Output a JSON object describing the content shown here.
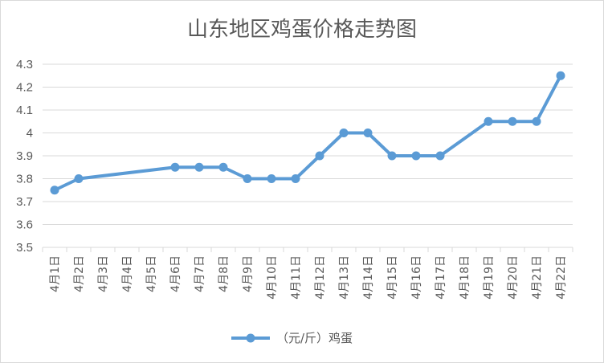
{
  "chart_data": {
    "type": "line",
    "title": "山东地区鸡蛋价格走势图",
    "xlabel": "",
    "ylabel": "",
    "ylim": [
      3.5,
      4.3
    ],
    "yticks": [
      "3.5",
      "3.6",
      "3.7",
      "3.8",
      "3.9",
      "4",
      "4.1",
      "4.2",
      "4.3"
    ],
    "grid": true,
    "legend_position": "bottom",
    "categories": [
      "4月1日",
      "4月2日",
      "4月3日",
      "4月4日",
      "4月5日",
      "4月6日",
      "4月7日",
      "4月8日",
      "4月9日",
      "4月10日",
      "4月11日",
      "4月12日",
      "4月13日",
      "4月14日",
      "4月15日",
      "4月16日",
      "4月17日",
      "4月18日",
      "4月19日",
      "4月20日",
      "4月21日",
      "4月22日"
    ],
    "series": [
      {
        "name": "（元/斤）鸡蛋",
        "color": "#5b9bd5",
        "values": [
          3.75,
          3.8,
          null,
          null,
          null,
          3.85,
          3.85,
          3.85,
          3.8,
          3.8,
          3.8,
          3.9,
          4.0,
          4.0,
          3.9,
          3.9,
          3.9,
          null,
          4.05,
          4.05,
          4.05,
          4.25
        ]
      }
    ]
  }
}
